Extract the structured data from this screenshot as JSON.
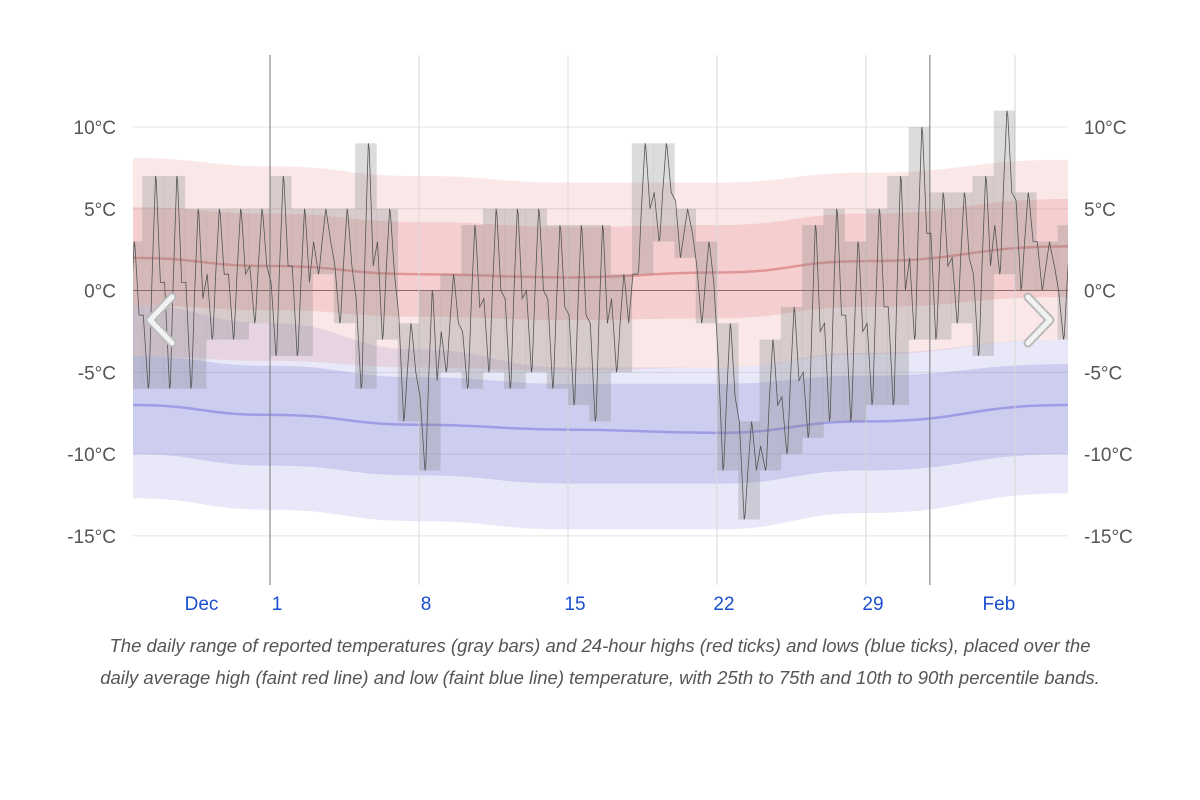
{
  "chart_data": {
    "type": "area",
    "title": "",
    "xlabel": "",
    "ylabel": "",
    "unit": "°C",
    "ylim": [
      -18,
      14.4
    ],
    "grid": true,
    "y_ticks": [
      "10°C",
      "5°C",
      "0°C",
      "-5°C",
      "-10°C",
      "-15°C"
    ],
    "y_tick_values": [
      10,
      5,
      0,
      -5,
      -10,
      -15
    ],
    "x_ticks": [
      {
        "label": "Dec",
        "date": "Dec 28",
        "kind": "month"
      },
      {
        "label": "1",
        "date": "Jan 1",
        "kind": "day"
      },
      {
        "label": "8",
        "date": "Jan 8",
        "kind": "day"
      },
      {
        "label": "15",
        "date": "Jan 15",
        "kind": "day"
      },
      {
        "label": "22",
        "date": "Jan 22",
        "kind": "day"
      },
      {
        "label": "29",
        "date": "Jan 29",
        "kind": "day"
      },
      {
        "label": "Feb",
        "date": "Feb 4",
        "kind": "month"
      }
    ],
    "gridlines": [
      "Jan 1",
      "Jan 8",
      "Jan 15",
      "Jan 22",
      "Jan 29",
      "Feb 5"
    ],
    "month_boundaries": [
      "Jan 1",
      "Feb 1"
    ],
    "x_range": [
      "Dec 25",
      "Feb 7"
    ],
    "daily_range": [
      {
        "date": "Dec 25",
        "low": -6,
        "high": 3
      },
      {
        "date": "Dec 26",
        "low": -6,
        "high": 7
      },
      {
        "date": "Dec 27",
        "low": -6,
        "high": 7
      },
      {
        "date": "Dec 28",
        "low": -6,
        "high": 5
      },
      {
        "date": "Dec 29",
        "low": -3,
        "high": 5
      },
      {
        "date": "Dec 30",
        "low": -3,
        "high": 5
      },
      {
        "date": "Dec 31",
        "low": -2,
        "high": 5
      },
      {
        "date": "Jan 1",
        "low": -4,
        "high": 7
      },
      {
        "date": "Jan 2",
        "low": -4,
        "high": 5
      },
      {
        "date": "Jan 3",
        "low": 1,
        "high": 5
      },
      {
        "date": "Jan 4",
        "low": -2,
        "high": 5
      },
      {
        "date": "Jan 5",
        "low": -6,
        "high": 9
      },
      {
        "date": "Jan 6",
        "low": -3,
        "high": 5
      },
      {
        "date": "Jan 7",
        "low": -8,
        "high": -2
      },
      {
        "date": "Jan 8",
        "low": -11,
        "high": 0
      },
      {
        "date": "Jan 9",
        "low": -5,
        "high": 1
      },
      {
        "date": "Jan 10",
        "low": -6,
        "high": 4
      },
      {
        "date": "Jan 11",
        "low": -5,
        "high": 5
      },
      {
        "date": "Jan 12",
        "low": -6,
        "high": 5
      },
      {
        "date": "Jan 13",
        "low": -5,
        "high": 5
      },
      {
        "date": "Jan 14",
        "low": -6,
        "high": 4
      },
      {
        "date": "Jan 15",
        "low": -7,
        "high": 4
      },
      {
        "date": "Jan 16",
        "low": -8,
        "high": 4
      },
      {
        "date": "Jan 17",
        "low": -5,
        "high": 1
      },
      {
        "date": "Jan 18",
        "low": 1,
        "high": 9
      },
      {
        "date": "Jan 19",
        "low": 3,
        "high": 9
      },
      {
        "date": "Jan 20",
        "low": 2,
        "high": 5
      },
      {
        "date": "Jan 21",
        "low": -2,
        "high": 3
      },
      {
        "date": "Jan 22",
        "low": -11,
        "high": -2
      },
      {
        "date": "Jan 23",
        "low": -14,
        "high": -8
      },
      {
        "date": "Jan 24",
        "low": -11,
        "high": -3
      },
      {
        "date": "Jan 25",
        "low": -10,
        "high": -1
      },
      {
        "date": "Jan 26",
        "low": -9,
        "high": 4
      },
      {
        "date": "Jan 27",
        "low": -8,
        "high": 5
      },
      {
        "date": "Jan 28",
        "low": -8,
        "high": 3
      },
      {
        "date": "Jan 29",
        "low": -7,
        "high": 5
      },
      {
        "date": "Jan 30",
        "low": -7,
        "high": 7
      },
      {
        "date": "Jan 31",
        "low": -3,
        "high": 10
      },
      {
        "date": "Feb 1",
        "low": -3,
        "high": 6
      },
      {
        "date": "Feb 2",
        "low": -2,
        "high": 6
      },
      {
        "date": "Feb 3",
        "low": -4,
        "high": 7
      },
      {
        "date": "Feb 4",
        "low": 1,
        "high": 11
      },
      {
        "date": "Feb 5",
        "low": 0,
        "high": 6
      },
      {
        "date": "Feb 6",
        "low": 0,
        "high": 3
      },
      {
        "date": "Feb 7",
        "low": -3,
        "high": 4
      }
    ],
    "normals": {
      "dates": [
        "Dec 25",
        "Jan 1",
        "Jan 8",
        "Jan 15",
        "Jan 22",
        "Jan 29",
        "Feb 7"
      ],
      "avg_high": [
        2.0,
        1.5,
        1.0,
        0.8,
        1.1,
        1.8,
        2.7
      ],
      "high_p25": [
        -0.9,
        -1.2,
        -1.6,
        -1.8,
        -1.7,
        -1.0,
        -0.4
      ],
      "high_p75": [
        5.1,
        4.7,
        4.2,
        3.9,
        4.0,
        4.7,
        5.6
      ],
      "high_p10": [
        -4.0,
        -4.3,
        -4.7,
        -4.9,
        -4.7,
        -3.9,
        -3.0
      ],
      "high_p90": [
        8.1,
        7.6,
        7.0,
        6.6,
        6.6,
        7.2,
        8.0
      ],
      "avg_low": [
        -7.0,
        -7.6,
        -8.2,
        -8.5,
        -8.7,
        -8.0,
        -7.0
      ],
      "low_p25": [
        -10.0,
        -10.7,
        -11.3,
        -11.8,
        -11.8,
        -11.0,
        -10.0
      ],
      "low_p75": [
        -4.0,
        -4.6,
        -5.3,
        -5.7,
        -5.7,
        -5.2,
        -4.5
      ],
      "low_p10": [
        -12.7,
        -13.4,
        -14.1,
        -14.6,
        -14.6,
        -13.6,
        -12.4
      ],
      "low_p90": [
        -0.9,
        -2.0,
        -3.6,
        -4.7,
        -4.7,
        -3.8,
        -3.0
      ]
    },
    "colors": {
      "range_bar": "#808080",
      "high": "#d9534f",
      "low": "#5a5ad6",
      "tick_label": "#1a4fd0"
    }
  },
  "navigation": {
    "prev_icon": "chevron-left-icon",
    "next_icon": "chevron-right-icon"
  },
  "caption": "The daily range of reported temperatures (gray bars) and 24-hour highs (red ticks) and lows (blue ticks), placed over the daily average high (faint red line) and low (faint blue line) temperature, with 25th to 75th and 10th to 90th percentile bands."
}
